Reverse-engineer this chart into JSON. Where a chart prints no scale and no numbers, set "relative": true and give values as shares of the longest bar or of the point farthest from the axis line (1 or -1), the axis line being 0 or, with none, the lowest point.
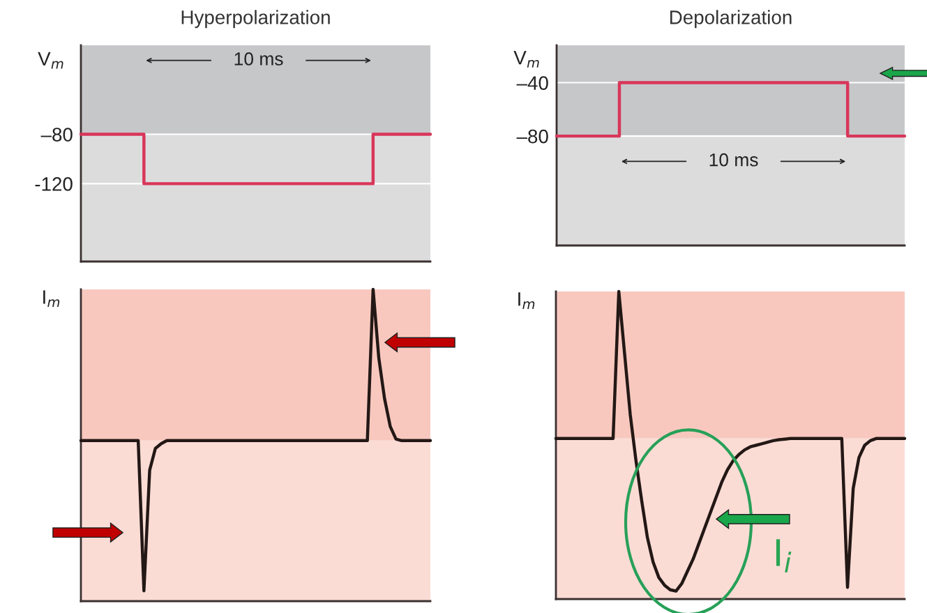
{
  "chart_data": [
    {
      "type": "step",
      "title": "Hyperpolarization",
      "ylabel": "V$_{m}$",
      "categories": [
        null,
        null,
        null,
        null,
        null,
        null,
        null,
        null,
        null,
        null,
        null,
        null,
        null,
        null,
        null,
        null,
        null,
        null,
        null,
        null,
        null,
        null,
        null,
        null,
        null,
        null,
        null,
        null,
        null,
        null,
        null,
        null,
        null,
        null,
        null,
        null,
        null,
        null,
        null,
        null,
        null,
        null,
        null,
        null,
        null,
        null,
        null,
        null,
        null,
        null,
        null,
        null,
        null,
        null,
        null,
        null,
        null,
        null,
        null,
        null,
        null,
        null
      ],
      "series": [
        {
          "color": "#d9365a",
          "values": [
            -80,
            -80,
            -80,
            -80,
            -80,
            -80,
            -80,
            -80,
            -80,
            -80,
            -80,
            -120,
            -120,
            -120,
            -120,
            -120,
            -120,
            -120,
            -120,
            -120,
            -120,
            -120,
            -120,
            -120,
            -120,
            -120,
            -120,
            -120,
            -120,
            -120,
            -120,
            -120,
            -120,
            -120,
            -120,
            -120,
            -120,
            -120,
            -120,
            -120,
            -120,
            -120,
            -120,
            -120,
            -120,
            -120,
            -120,
            -120,
            -120,
            -120,
            -120,
            -80,
            -80,
            -80,
            -80,
            -80,
            -80,
            -80,
            -80,
            -80,
            -80,
            -80
          ]
        }
      ],
      "ylim": [
        -183,
        -8
      ],
      "yticks": [
        {
          "value": -80,
          "label": "–80"
        },
        {
          "value": -120,
          "label": "-120"
        }
      ],
      "tick_labels": "y",
      "grid": "y",
      "bands": [
        {
          "axis": "y",
          "from": -80,
          "to": -8,
          "color": "#c6c7c9"
        },
        {
          "axis": "y",
          "from": -183,
          "to": -80,
          "color": "#dcdcdd"
        }
      ],
      "annotations": [
        "10 ms"
      ]
    },
    {
      "type": "step",
      "title": "Depolarization",
      "ylabel": "V$_{m}$",
      "categories": [
        null,
        null,
        null,
        null,
        null,
        null,
        null,
        null,
        null,
        null,
        null,
        null,
        null,
        null,
        null,
        null,
        null,
        null,
        null,
        null,
        null,
        null,
        null,
        null,
        null,
        null,
        null,
        null,
        null,
        null,
        null,
        null,
        null,
        null,
        null,
        null,
        null,
        null,
        null,
        null,
        null,
        null,
        null,
        null,
        null,
        null,
        null,
        null,
        null,
        null,
        null,
        null,
        null,
        null,
        null,
        null,
        null,
        null,
        null,
        null,
        null,
        null
      ],
      "series": [
        {
          "color": "#d9365a",
          "values": [
            -80,
            -80,
            -80,
            -80,
            -80,
            -80,
            -80,
            -80,
            -80,
            -80,
            -80,
            -40,
            -40,
            -40,
            -40,
            -40,
            -40,
            -40,
            -40,
            -40,
            -40,
            -40,
            -40,
            -40,
            -40,
            -40,
            -40,
            -40,
            -40,
            -40,
            -40,
            -40,
            -40,
            -40,
            -40,
            -40,
            -40,
            -40,
            -40,
            -40,
            -40,
            -40,
            -40,
            -40,
            -40,
            -40,
            -40,
            -40,
            -40,
            -40,
            -40,
            -80,
            -80,
            -80,
            -80,
            -80,
            -80,
            -80,
            -80,
            -80,
            -80,
            -80
          ]
        }
      ],
      "ylim": [
        -162,
        -12
      ],
      "yticks": [
        {
          "value": -40,
          "label": "–40"
        },
        {
          "value": -80,
          "label": "–80"
        }
      ],
      "tick_labels": "y",
      "grid": "y",
      "bands": [
        {
          "axis": "y",
          "from": -80,
          "to": -12,
          "color": "#c6c7c9"
        },
        {
          "axis": "y",
          "from": -162,
          "to": -80,
          "color": "#dcdcdd"
        }
      ],
      "annotations": [
        "10 ms"
      ]
    },
    {
      "type": "line",
      "ylabel": "I$_{m}$",
      "relative": true,
      "tick_labels": false,
      "categories": [
        null,
        null,
        null,
        null,
        null,
        null,
        null,
        null,
        null,
        null,
        null,
        null,
        null,
        null,
        null,
        null,
        null,
        null,
        null,
        null,
        null,
        null,
        null,
        null,
        null,
        null,
        null,
        null,
        null,
        null,
        null,
        null,
        null,
        null,
        null,
        null,
        null,
        null,
        null,
        null,
        null,
        null,
        null,
        null,
        null,
        null,
        null,
        null,
        null,
        null,
        null,
        null,
        null,
        null,
        null,
        null,
        null,
        null,
        null,
        null,
        null,
        null
      ],
      "series": [
        {
          "color": "#231815",
          "values": [
            0.515,
            0.515,
            0.515,
            0.515,
            0.515,
            0.515,
            0.515,
            0.515,
            0.515,
            0.515,
            0.515,
            0.033,
            0.42,
            0.49,
            0.505,
            0.515,
            0.515,
            0.515,
            0.515,
            0.515,
            0.515,
            0.515,
            0.515,
            0.515,
            0.515,
            0.515,
            0.515,
            0.515,
            0.515,
            0.515,
            0.515,
            0.515,
            0.515,
            0.515,
            0.515,
            0.515,
            0.515,
            0.515,
            0.515,
            0.515,
            0.515,
            0.515,
            0.515,
            0.515,
            0.515,
            0.515,
            0.515,
            0.515,
            0.515,
            0.515,
            0.515,
            1.0,
            0.78,
            0.65,
            0.56,
            0.52,
            0.515,
            0.515,
            0.515,
            0.515,
            0.515,
            0.515
          ]
        }
      ],
      "bands": [
        {
          "axis": "y",
          "from": 0.515,
          "to": 1,
          "color": "#f8c8bf"
        },
        {
          "axis": "y",
          "from": 0,
          "to": 0.515,
          "color": "#fbdcd5"
        }
      ]
    },
    {
      "type": "line",
      "ylabel": "I$_{m}$",
      "relative": true,
      "tick_labels": false,
      "categories": [
        null,
        null,
        null,
        null,
        null,
        null,
        null,
        null,
        null,
        null,
        null,
        null,
        null,
        null,
        null,
        null,
        null,
        null,
        null,
        null,
        null,
        null,
        null,
        null,
        null,
        null,
        null,
        null,
        null,
        null,
        null,
        null,
        null,
        null,
        null,
        null,
        null,
        null,
        null,
        null,
        null,
        null,
        null,
        null,
        null,
        null,
        null,
        null,
        null,
        null,
        null,
        null,
        null,
        null,
        null,
        null,
        null,
        null,
        null,
        null,
        null,
        null
      ],
      "series": [
        {
          "color": "#231815",
          "values": [
            0.522,
            0.522,
            0.522,
            0.522,
            0.522,
            0.522,
            0.522,
            0.522,
            0.522,
            0.522,
            0.522,
            1.0,
            0.8,
            0.6,
            0.45,
            0.32,
            0.2,
            0.12,
            0.07,
            0.045,
            0.03,
            0.026,
            0.05,
            0.09,
            0.13,
            0.18,
            0.23,
            0.28,
            0.33,
            0.38,
            0.42,
            0.45,
            0.47,
            0.485,
            0.495,
            0.5,
            0.505,
            0.51,
            0.515,
            0.518,
            0.52,
            0.522,
            0.522,
            0.522,
            0.522,
            0.522,
            0.522,
            0.522,
            0.522,
            0.522,
            0.522,
            0.038,
            0.36,
            0.46,
            0.5,
            0.515,
            0.522,
            0.522,
            0.522,
            0.522,
            0.522,
            0.522
          ]
        }
      ],
      "bands": [
        {
          "axis": "y",
          "from": 0.522,
          "to": 1,
          "color": "#f8c8bf"
        },
        {
          "axis": "y",
          "from": 0,
          "to": 0.522,
          "color": "#fbdcd5"
        }
      ],
      "annotations": [
        "I$_{i}$"
      ]
    }
  ]
}
